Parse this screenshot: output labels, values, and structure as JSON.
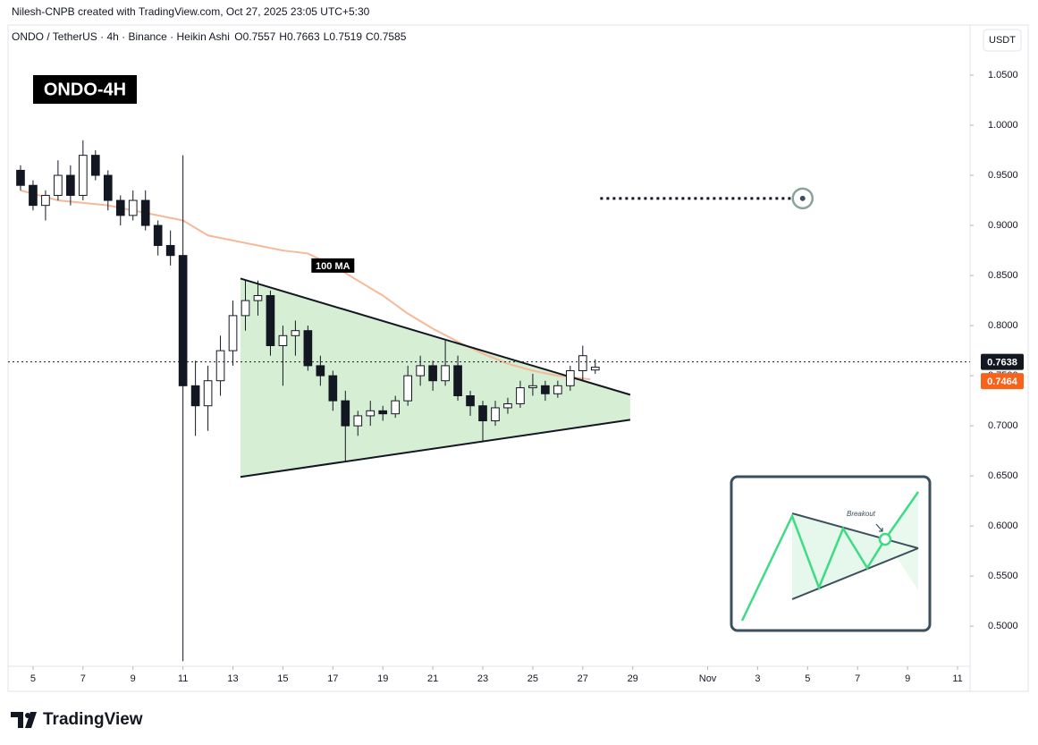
{
  "header": {
    "credit": "Nilesh-CNPB created with TradingView.com, Oct 27, 2025 23:05 UTC+5:30",
    "symbol": "ONDO / TetherUS · 4h · Binance · Heikin Ashi",
    "ohlc_labels": [
      "O",
      "H",
      "L",
      "C"
    ]
  },
  "chart_data": {
    "type": "candlestick",
    "title": "ONDO-4H",
    "currency": "USDT",
    "x": [
      4.5,
      5,
      5.5,
      6,
      6.5,
      7,
      7.5,
      8,
      8.5,
      9,
      9.5,
      10,
      10.5,
      11,
      11.5,
      12,
      12.5,
      13,
      13.5,
      14,
      14.5,
      15,
      15.5,
      16,
      16.5,
      17,
      17.5,
      18,
      18.5,
      19,
      19.5,
      20,
      20.5,
      21,
      21.5,
      22,
      22.5,
      23,
      23.5,
      24,
      24.5,
      25,
      25.5,
      26,
      26.5,
      27,
      27.5
    ],
    "open": [
      0.955,
      0.94,
      0.92,
      0.93,
      0.95,
      0.93,
      0.97,
      0.95,
      0.925,
      0.91,
      0.925,
      0.9,
      0.88,
      0.87,
      0.74,
      0.72,
      0.745,
      0.775,
      0.81,
      0.825,
      0.83,
      0.78,
      0.79,
      0.795,
      0.76,
      0.75,
      0.725,
      0.7,
      0.71,
      0.715,
      0.712,
      0.725,
      0.75,
      0.76,
      0.745,
      0.76,
      0.73,
      0.72,
      0.705,
      0.718,
      0.722,
      0.738,
      0.74,
      0.732,
      0.74,
      0.755,
      0.7557
    ],
    "high": [
      0.96,
      0.945,
      0.935,
      0.965,
      0.96,
      0.985,
      0.975,
      0.955,
      0.93,
      0.935,
      0.935,
      0.905,
      0.895,
      0.97,
      0.765,
      0.76,
      0.79,
      0.825,
      0.845,
      0.845,
      0.835,
      0.8,
      0.805,
      0.8,
      0.77,
      0.755,
      0.735,
      0.715,
      0.725,
      0.72,
      0.73,
      0.76,
      0.77,
      0.765,
      0.785,
      0.77,
      0.735,
      0.725,
      0.725,
      0.728,
      0.745,
      0.752,
      0.745,
      0.745,
      0.76,
      0.78,
      0.7663
    ],
    "low": [
      0.935,
      0.915,
      0.905,
      0.925,
      0.92,
      0.925,
      0.945,
      0.915,
      0.9,
      0.905,
      0.895,
      0.87,
      0.86,
      0.465,
      0.69,
      0.695,
      0.73,
      0.76,
      0.795,
      0.81,
      0.77,
      0.74,
      0.77,
      0.755,
      0.74,
      0.715,
      0.665,
      0.69,
      0.7,
      0.705,
      0.708,
      0.72,
      0.74,
      0.735,
      0.74,
      0.725,
      0.71,
      0.685,
      0.7,
      0.712,
      0.718,
      0.73,
      0.725,
      0.728,
      0.735,
      0.745,
      0.7519
    ],
    "close": [
      0.94,
      0.92,
      0.93,
      0.95,
      0.93,
      0.97,
      0.95,
      0.925,
      0.91,
      0.925,
      0.9,
      0.88,
      0.87,
      0.74,
      0.72,
      0.745,
      0.775,
      0.81,
      0.825,
      0.83,
      0.78,
      0.79,
      0.795,
      0.76,
      0.75,
      0.725,
      0.7,
      0.71,
      0.715,
      0.712,
      0.725,
      0.75,
      0.76,
      0.745,
      0.76,
      0.73,
      0.72,
      0.705,
      0.718,
      0.722,
      0.738,
      0.74,
      0.732,
      0.74,
      0.755,
      0.77,
      0.7585
    ],
    "up_color": "#ffffff",
    "down_color": "#131722",
    "wick_color": "#131722",
    "xlim": [
      4,
      42.5
    ],
    "xticks": [
      5,
      7,
      9,
      11,
      13,
      15,
      17,
      19,
      21,
      23,
      25,
      27,
      29,
      {
        "value": 32,
        "label": "Nov"
      },
      {
        "value": 34,
        "label": "3"
      },
      {
        "value": 36,
        "label": "5"
      },
      {
        "value": 38,
        "label": "7"
      },
      {
        "value": 40,
        "label": "9"
      },
      {
        "value": 42,
        "label": "11"
      }
    ],
    "ylim": [
      0.46,
      1.1
    ],
    "yticks": [
      {
        "value": 0.5,
        "label": "0.5000"
      },
      {
        "value": 0.55,
        "label": "0.5500"
      },
      {
        "value": 0.6,
        "label": "0.6000"
      },
      {
        "value": 0.65,
        "label": "0.6500"
      },
      {
        "value": 0.7,
        "label": "0.7000"
      },
      {
        "value": 0.75,
        "label": "0.7500"
      },
      {
        "value": 0.8,
        "label": "0.8000"
      },
      {
        "value": 0.85,
        "label": "0.8500"
      },
      {
        "value": 0.9,
        "label": "0.9000"
      },
      {
        "value": 0.95,
        "label": "0.9500"
      },
      {
        "value": 1.0,
        "label": "1.0000"
      },
      {
        "value": 1.05,
        "label": "1.0500"
      }
    ],
    "grid": false,
    "ma": {
      "name": "100 MA",
      "color": "#f5b99a",
      "x": [
        4.5,
        6,
        8,
        10,
        11,
        12,
        13,
        14,
        15,
        16,
        17,
        18,
        19,
        20,
        21,
        22,
        23,
        24,
        25,
        26,
        27.3
      ],
      "values": [
        0.935,
        0.925,
        0.92,
        0.91,
        0.905,
        0.89,
        0.885,
        0.88,
        0.875,
        0.872,
        0.86,
        0.845,
        0.83,
        0.812,
        0.797,
        0.784,
        0.772,
        0.762,
        0.755,
        0.75,
        0.7464
      ]
    },
    "trendlines": [
      {
        "x": [
          13.3,
          28.9
        ],
        "values": [
          0.847,
          0.731
        ]
      },
      {
        "x": [
          13.3,
          28.9
        ],
        "values": [
          0.649,
          0.706
        ]
      }
    ],
    "triangle_color": "#d6efd4",
    "target": {
      "x": [
        27.7,
        35.8
      ],
      "value": 0.927
    },
    "last_price": 0.7638,
    "ma_last": 0.7464
  },
  "inset": {
    "label": "Breakout"
  },
  "footer": {
    "brand": "TradingView"
  }
}
